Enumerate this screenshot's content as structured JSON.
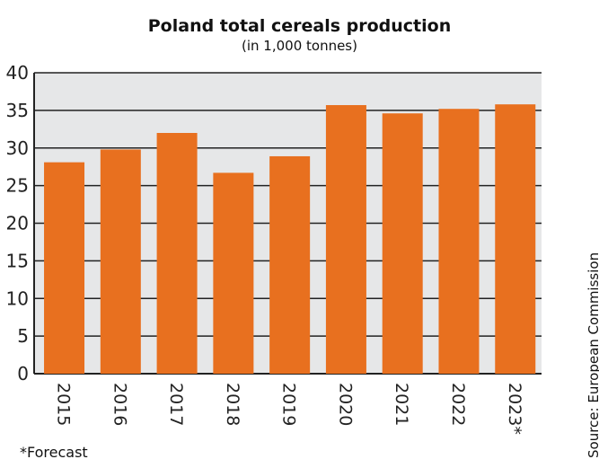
{
  "chart_data": {
    "type": "bar",
    "title": "Poland total cereals production",
    "subtitle": "(in 1,000 tonnes)",
    "categories": [
      "2015",
      "2016",
      "2017",
      "2018",
      "2019",
      "2020",
      "2021",
      "2022",
      "2023*"
    ],
    "values": [
      28.1,
      29.8,
      32.0,
      26.7,
      28.9,
      35.7,
      34.6,
      35.2,
      35.8
    ],
    "ylim": [
      0,
      40
    ],
    "yticks": [
      0,
      5,
      10,
      15,
      20,
      25,
      30,
      35,
      40
    ],
    "grid": true,
    "xlabel": "",
    "ylabel": "",
    "bar_color": "#e8701f",
    "plot_bg": "#e6e7e8"
  },
  "footnote": "*Forecast",
  "source": "Source:  European Commission"
}
